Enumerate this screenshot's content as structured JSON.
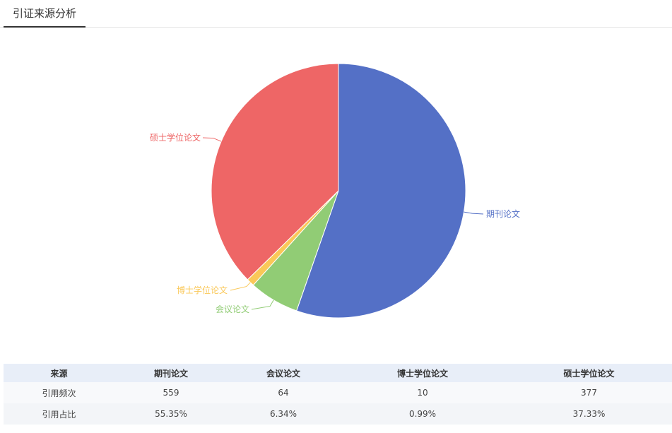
{
  "tab": {
    "title": "引证来源分析"
  },
  "colors": {
    "journal": "#5470c6",
    "conference": "#91cc75",
    "phd": "#fac858",
    "master": "#ee6666"
  },
  "chart_data": {
    "type": "pie",
    "title": "",
    "start_angle_deg": 90,
    "direction": "clockwise",
    "slices": [
      {
        "label": "期刊论文",
        "value": 559,
        "color": "#5470c6"
      },
      {
        "label": "会议论文",
        "value": 64,
        "color": "#91cc75"
      },
      {
        "label": "博士学位论文",
        "value": 10,
        "color": "#fac858"
      },
      {
        "label": "硕士学位论文",
        "value": 377,
        "color": "#ee6666"
      }
    ]
  },
  "table": {
    "header": [
      "来源",
      "期刊论文",
      "会议论文",
      "博士学位论文",
      "硕士学位论文"
    ],
    "rows": [
      [
        "引用频次",
        "559",
        "64",
        "10",
        "377"
      ],
      [
        "引用占比",
        "55.35%",
        "6.34%",
        "0.99%",
        "37.33%"
      ]
    ]
  }
}
